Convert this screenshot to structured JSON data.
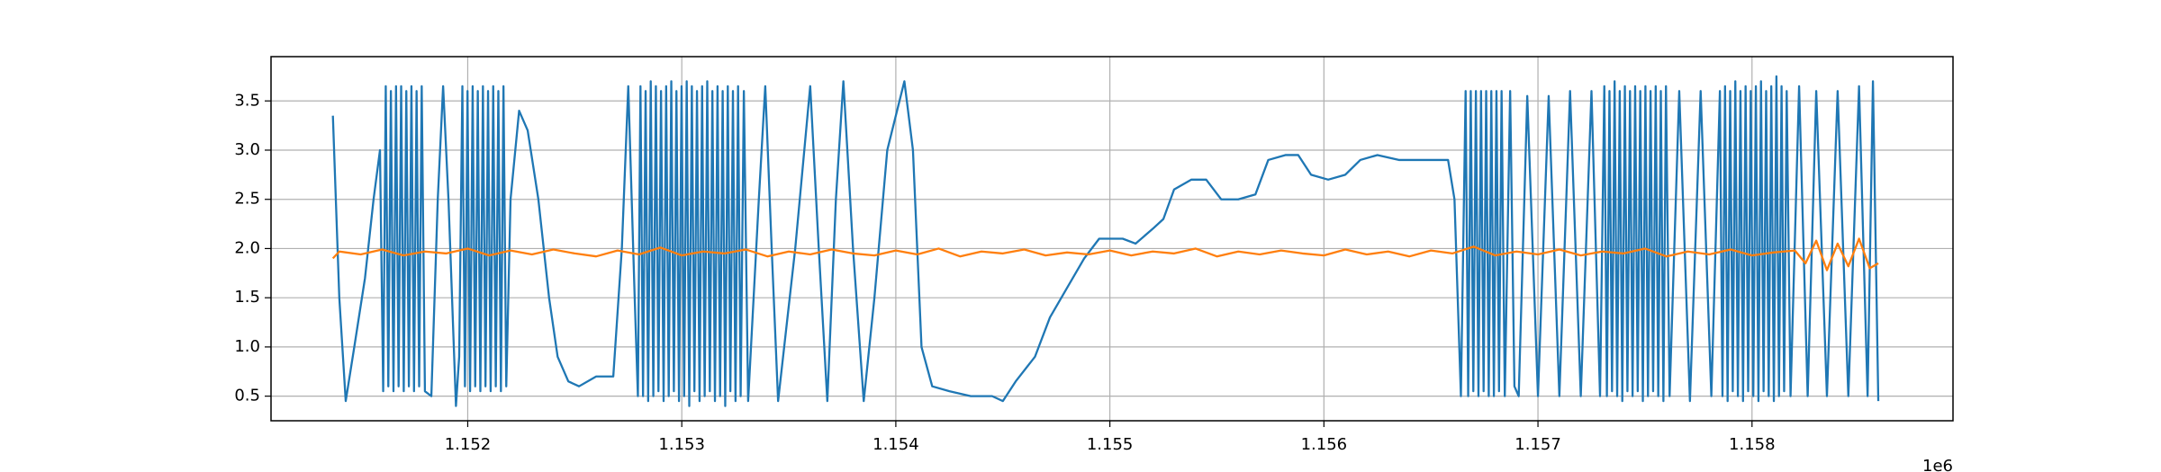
{
  "chart_data": {
    "type": "line",
    "xlim": [
      1151081,
      1158939
    ],
    "ylim": [
      0.25,
      3.95
    ],
    "xticks": [
      {
        "value": 1152000,
        "label": "1.152"
      },
      {
        "value": 1153000,
        "label": "1.153"
      },
      {
        "value": 1154000,
        "label": "1.154"
      },
      {
        "value": 1155000,
        "label": "1.155"
      },
      {
        "value": 1156000,
        "label": "1.156"
      },
      {
        "value": 1157000,
        "label": "1.157"
      },
      {
        "value": 1158000,
        "label": "1.158"
      }
    ],
    "x_offset_label": "1e6",
    "yticks": [
      0.5,
      {
        "value": 1,
        "label": "1.0"
      },
      1.5,
      {
        "value": 2,
        "label": "2.0"
      },
      2.5,
      {
        "value": 3,
        "label": "3.0"
      },
      3.5
    ],
    "grid": true,
    "series": [
      {
        "color": "#1f77b4",
        "x": [
          1151370,
          1151400,
          1151430,
          1151470,
          1151520,
          1151560,
          1151590,
          1151605,
          1151617,
          1151629,
          1151641,
          1151653,
          1151665,
          1151677,
          1151689,
          1151701,
          1151713,
          1151725,
          1151737,
          1151749,
          1151761,
          1151773,
          1151785,
          1151800,
          1151830,
          1151860,
          1151885,
          1151910,
          1151945,
          1151960,
          1151975,
          1151987,
          1151999,
          1152011,
          1152023,
          1152035,
          1152047,
          1152059,
          1152071,
          1152083,
          1152095,
          1152107,
          1152119,
          1152131,
          1152143,
          1152155,
          1152167,
          1152180,
          1152200,
          1152240,
          1152280,
          1152330,
          1152380,
          1152420,
          1152470,
          1152520,
          1152600,
          1152680,
          1152720,
          1152750,
          1152780,
          1152795,
          1152807,
          1152819,
          1152831,
          1152843,
          1152855,
          1152867,
          1152879,
          1152891,
          1152903,
          1152915,
          1152927,
          1152939,
          1152951,
          1152963,
          1152975,
          1152987,
          1152999,
          1153011,
          1153023,
          1153035,
          1153047,
          1153059,
          1153071,
          1153083,
          1153095,
          1153107,
          1153119,
          1153131,
          1153143,
          1153155,
          1153167,
          1153179,
          1153191,
          1153203,
          1153215,
          1153227,
          1153239,
          1153251,
          1153263,
          1153275,
          1153290,
          1153310,
          1153360,
          1153390,
          1153420,
          1153450,
          1153530,
          1153600,
          1153640,
          1153680,
          1153720,
          1153755,
          1153800,
          1153850,
          1153900,
          1153960,
          1154040,
          1154080,
          1154120,
          1154170,
          1154250,
          1154350,
          1154450,
          1154500,
          1154560,
          1154650,
          1154720,
          1154800,
          1154880,
          1154950,
          1155000,
          1155060,
          1155120,
          1155200,
          1155250,
          1155300,
          1155380,
          1155450,
          1155520,
          1155600,
          1155680,
          1155740,
          1155820,
          1155880,
          1155940,
          1156020,
          1156100,
          1156170,
          1156250,
          1156350,
          1156450,
          1156580,
          1156610,
          1156640,
          1156662,
          1156674,
          1156686,
          1156698,
          1156710,
          1156722,
          1156734,
          1156746,
          1156758,
          1156770,
          1156782,
          1156794,
          1156806,
          1156818,
          1156830,
          1156845,
          1156870,
          1156890,
          1156910,
          1156950,
          1157000,
          1157050,
          1157100,
          1157150,
          1157200,
          1157250,
          1157290,
          1157310,
          1157322,
          1157334,
          1157346,
          1157358,
          1157370,
          1157382,
          1157394,
          1157406,
          1157418,
          1157430,
          1157442,
          1157454,
          1157466,
          1157478,
          1157490,
          1157502,
          1157514,
          1157526,
          1157538,
          1157550,
          1157562,
          1157574,
          1157586,
          1157598,
          1157615,
          1157660,
          1157710,
          1157760,
          1157810,
          1157850,
          1157862,
          1157874,
          1157886,
          1157898,
          1157910,
          1157922,
          1157934,
          1157946,
          1157958,
          1157970,
          1157982,
          1157994,
          1158006,
          1158018,
          1158030,
          1158042,
          1158054,
          1158066,
          1158078,
          1158090,
          1158102,
          1158114,
          1158126,
          1158138,
          1158150,
          1158162,
          1158180,
          1158220,
          1158260,
          1158300,
          1158350,
          1158400,
          1158450,
          1158500,
          1158540,
          1158565,
          1158590
        ],
        "values": [
          3.35,
          1.5,
          0.45,
          1.0,
          1.7,
          2.5,
          3.0,
          0.55,
          3.65,
          0.6,
          3.6,
          0.55,
          3.65,
          0.6,
          3.65,
          0.55,
          3.6,
          0.6,
          3.65,
          0.55,
          3.6,
          0.6,
          3.65,
          0.55,
          0.5,
          2.5,
          3.65,
          2.5,
          0.4,
          0.9,
          3.65,
          0.6,
          3.6,
          0.55,
          3.65,
          0.6,
          3.6,
          0.55,
          3.65,
          0.6,
          3.6,
          0.55,
          3.65,
          0.6,
          3.6,
          0.55,
          3.65,
          0.6,
          2.5,
          3.4,
          3.2,
          2.5,
          1.5,
          0.9,
          0.65,
          0.6,
          0.7,
          0.7,
          2.0,
          3.65,
          1.5,
          0.5,
          3.65,
          0.5,
          3.6,
          0.45,
          3.7,
          0.5,
          3.65,
          0.55,
          3.6,
          0.45,
          3.65,
          0.5,
          3.7,
          0.55,
          3.6,
          0.45,
          3.65,
          0.5,
          3.7,
          0.4,
          3.65,
          0.55,
          3.6,
          0.45,
          3.65,
          0.5,
          3.7,
          0.55,
          3.6,
          0.45,
          3.65,
          0.5,
          3.6,
          0.4,
          3.65,
          0.55,
          3.6,
          0.45,
          3.65,
          0.5,
          3.6,
          0.45,
          2.5,
          3.65,
          2.0,
          0.45,
          2.0,
          3.65,
          2.0,
          0.45,
          2.5,
          3.7,
          2.0,
          0.45,
          1.5,
          3.0,
          3.7,
          3.0,
          1.0,
          0.6,
          0.55,
          0.5,
          0.5,
          0.45,
          0.65,
          0.9,
          1.3,
          1.6,
          1.9,
          2.1,
          2.1,
          2.1,
          2.05,
          2.2,
          2.3,
          2.6,
          2.7,
          2.7,
          2.5,
          2.5,
          2.55,
          2.9,
          2.95,
          2.95,
          2.75,
          2.7,
          2.75,
          2.9,
          2.95,
          2.9,
          2.9,
          2.9,
          2.5,
          0.5,
          3.6,
          0.5,
          3.6,
          0.55,
          3.6,
          0.5,
          3.6,
          0.55,
          3.6,
          0.5,
          3.6,
          0.5,
          3.6,
          0.55,
          3.6,
          0.5,
          3.6,
          0.6,
          0.5,
          3.55,
          0.5,
          3.55,
          0.5,
          3.6,
          0.5,
          3.6,
          0.5,
          3.65,
          0.5,
          3.6,
          0.55,
          3.7,
          0.5,
          3.6,
          0.45,
          3.65,
          0.55,
          3.6,
          0.5,
          3.65,
          0.55,
          3.6,
          0.45,
          3.65,
          0.5,
          3.6,
          0.55,
          3.65,
          0.5,
          3.6,
          0.45,
          3.65,
          0.5,
          3.6,
          0.45,
          3.6,
          0.5,
          3.6,
          0.5,
          3.65,
          0.45,
          3.6,
          0.55,
          3.7,
          0.5,
          3.6,
          0.45,
          3.65,
          0.55,
          3.6,
          0.5,
          3.65,
          0.45,
          3.7,
          0.55,
          3.6,
          0.5,
          3.65,
          0.45,
          3.75,
          0.5,
          3.65,
          0.55,
          3.6,
          0.5,
          3.65,
          0.5,
          3.6,
          0.5,
          3.6,
          0.5,
          3.65,
          0.5,
          3.7,
          0.45
        ]
      },
      {
        "color": "#ff7f0e",
        "x": [
          1151370,
          1151400,
          1151500,
          1151600,
          1151700,
          1151800,
          1151900,
          1152000,
          1152100,
          1152200,
          1152300,
          1152400,
          1152500,
          1152600,
          1152700,
          1152800,
          1152900,
          1153000,
          1153100,
          1153200,
          1153300,
          1153400,
          1153500,
          1153600,
          1153700,
          1153800,
          1153900,
          1154000,
          1154100,
          1154200,
          1154300,
          1154400,
          1154500,
          1154600,
          1154700,
          1154800,
          1154900,
          1155000,
          1155100,
          1155200,
          1155300,
          1155400,
          1155500,
          1155600,
          1155700,
          1155800,
          1155900,
          1156000,
          1156100,
          1156200,
          1156300,
          1156400,
          1156500,
          1156600,
          1156700,
          1156800,
          1156900,
          1157000,
          1157100,
          1157200,
          1157300,
          1157400,
          1157500,
          1157600,
          1157700,
          1157800,
          1157900,
          1158000,
          1158100,
          1158200,
          1158250,
          1158300,
          1158350,
          1158400,
          1158450,
          1158500,
          1158550,
          1158590
        ],
        "values": [
          1.9,
          1.97,
          1.94,
          1.99,
          1.93,
          1.97,
          1.95,
          2.0,
          1.93,
          1.98,
          1.94,
          1.99,
          1.95,
          1.92,
          1.98,
          1.94,
          2.01,
          1.93,
          1.97,
          1.95,
          1.99,
          1.92,
          1.97,
          1.94,
          1.99,
          1.95,
          1.93,
          1.98,
          1.94,
          2.0,
          1.92,
          1.97,
          1.95,
          1.99,
          1.93,
          1.96,
          1.94,
          1.98,
          1.93,
          1.97,
          1.95,
          2.0,
          1.92,
          1.97,
          1.94,
          1.98,
          1.95,
          1.93,
          1.99,
          1.94,
          1.97,
          1.92,
          1.98,
          1.95,
          2.02,
          1.93,
          1.97,
          1.94,
          1.99,
          1.93,
          1.97,
          1.95,
          2.0,
          1.92,
          1.97,
          1.94,
          1.99,
          1.93,
          1.96,
          1.98,
          1.85,
          2.08,
          1.78,
          2.05,
          1.82,
          2.1,
          1.8,
          1.85
        ]
      }
    ]
  }
}
